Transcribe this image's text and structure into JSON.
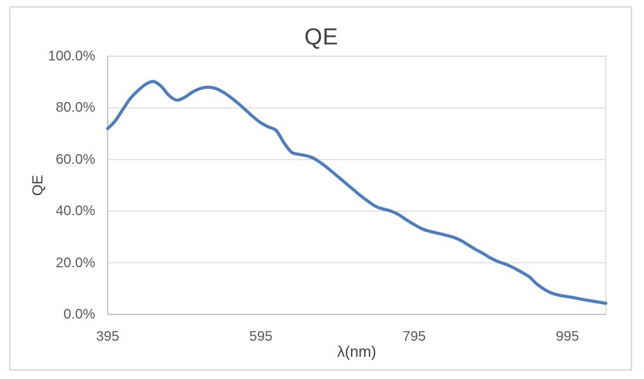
{
  "chart_data": {
    "type": "line",
    "title": "QE",
    "xlabel": "λ(nm)",
    "ylabel": "QE",
    "legend": "none",
    "grid": "horizontal-only",
    "smooth": true,
    "line_color": "#4e7dbe",
    "xlim": [
      395,
      1045
    ],
    "ylim": [
      0,
      100
    ],
    "x_ticks": [
      {
        "label": "395",
        "value": 395
      },
      {
        "label": "595",
        "value": 595
      },
      {
        "label": "795",
        "value": 795
      },
      {
        "label": "995",
        "value": 995
      }
    ],
    "y_ticks": [
      {
        "label": "100.0%",
        "value": 100
      },
      {
        "label": "80.0%",
        "value": 80
      },
      {
        "label": "60.0%",
        "value": 60
      },
      {
        "label": "40.0%",
        "value": 40
      },
      {
        "label": "20.0%",
        "value": 20
      },
      {
        "label": "0.0%",
        "value": 0
      }
    ],
    "series": [
      {
        "name": "QE",
        "x": [
          395,
          405,
          415,
          425,
          435,
          445,
          455,
          465,
          475,
          485,
          495,
          505,
          515,
          525,
          535,
          545,
          555,
          565,
          575,
          585,
          595,
          605,
          615,
          625,
          635,
          645,
          655,
          665,
          675,
          685,
          695,
          705,
          715,
          725,
          735,
          745,
          755,
          765,
          775,
          785,
          795,
          805,
          815,
          825,
          835,
          845,
          855,
          865,
          875,
          885,
          895,
          905,
          915,
          925,
          935,
          945,
          955,
          965,
          975,
          985,
          995,
          1005,
          1015,
          1025,
          1035,
          1045
        ],
        "y": [
          72.0,
          75.0,
          79.5,
          83.8,
          86.8,
          89.2,
          90.2,
          88.3,
          84.8,
          83.0,
          84.0,
          86.0,
          87.4,
          88.0,
          87.6,
          86.2,
          84.2,
          81.8,
          79.2,
          76.5,
          74.2,
          72.6,
          71.2,
          66.5,
          62.8,
          62.0,
          61.4,
          60.3,
          58.3,
          56.0,
          53.5,
          51.0,
          48.5,
          46.0,
          43.8,
          41.8,
          40.8,
          40.0,
          38.6,
          36.6,
          34.8,
          33.2,
          32.2,
          31.5,
          30.8,
          30.0,
          28.8,
          27.0,
          25.2,
          23.6,
          21.8,
          20.4,
          19.4,
          18.0,
          16.4,
          14.6,
          11.8,
          9.7,
          8.2,
          7.4,
          6.9,
          6.4,
          5.8,
          5.3,
          4.8,
          4.3
        ]
      }
    ]
  }
}
